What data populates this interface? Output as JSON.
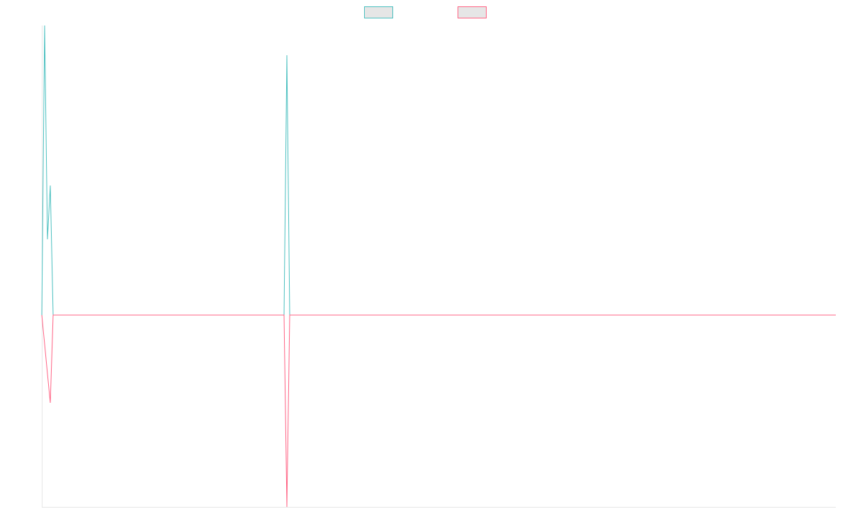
{
  "chart_data": {
    "type": "line",
    "x": [
      0,
      1,
      2,
      3,
      4,
      85.5,
      86.5,
      87.5,
      280.25
    ],
    "xlim": [
      0,
      280.25
    ],
    "ylim": [
      -271,
      409
    ],
    "series": [
      {
        "color": "#4bc0c0",
        "values": [
          0,
          409,
          107,
          183,
          0,
          0,
          367,
          0,
          0
        ]
      },
      {
        "color": "#ff6384",
        "values": [
          0,
          -41,
          -83,
          -124,
          0,
          0,
          -271,
          0,
          0
        ]
      }
    ]
  }
}
